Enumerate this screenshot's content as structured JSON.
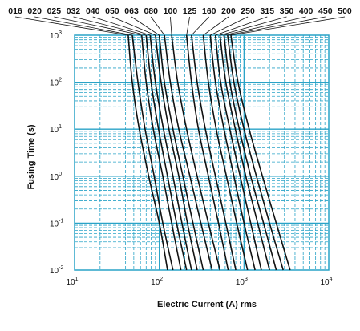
{
  "chart_data": {
    "type": "line",
    "title": "",
    "xlabel": "Electric Current (A) rms",
    "ylabel": "Fusing Time (s)",
    "x_scale": "log",
    "y_scale": "log",
    "xlim": [
      10,
      10000
    ],
    "ylim": [
      0.01,
      1000
    ],
    "x_ticks": [
      {
        "base": "10",
        "exp": "1"
      },
      {
        "base": "10",
        "exp": "2"
      },
      {
        "base": "10",
        "exp": "3"
      },
      {
        "base": "10",
        "exp": "4"
      }
    ],
    "y_ticks": [
      {
        "base": "10",
        "exp": "3"
      },
      {
        "base": "10",
        "exp": "2"
      },
      {
        "base": "10",
        "exp": "1"
      },
      {
        "base": "10",
        "exp": "0"
      },
      {
        "base": "10",
        "exp": "-1"
      },
      {
        "base": "10",
        "exp": "-2"
      }
    ],
    "grid": true,
    "grid_color": "#29a3c7",
    "line_color": "#111111",
    "legend": "rating labels along top edge with leader lines",
    "series": [
      {
        "name": "016",
        "x": [
          43,
          48,
          58,
          75,
          100,
          125
        ],
        "y": [
          1000,
          100,
          10,
          1,
          0.1,
          0.01
        ]
      },
      {
        "name": "020",
        "x": [
          48,
          56,
          68,
          87,
          110,
          145
        ],
        "y": [
          1000,
          100,
          10,
          1,
          0.1,
          0.01
        ]
      },
      {
        "name": "025",
        "x": [
          62,
          70,
          85,
          110,
          140,
          180
        ],
        "y": [
          1000,
          100,
          10,
          1,
          0.1,
          0.01
        ]
      },
      {
        "name": "032",
        "x": [
          70,
          80,
          98,
          125,
          160,
          210
        ],
        "y": [
          1000,
          100,
          10,
          1,
          0.1,
          0.01
        ]
      },
      {
        "name": "040",
        "x": [
          78,
          90,
          112,
          145,
          185,
          240
        ],
        "y": [
          1000,
          100,
          10,
          1,
          0.1,
          0.01
        ]
      },
      {
        "name": "050",
        "x": [
          90,
          105,
          130,
          170,
          215,
          280
        ],
        "y": [
          1000,
          100,
          10,
          1,
          0.1,
          0.01
        ]
      },
      {
        "name": "063",
        "x": [
          100,
          115,
          145,
          190,
          250,
          330
        ],
        "y": [
          1000,
          100,
          10,
          1,
          0.1,
          0.01
        ]
      },
      {
        "name": "080",
        "x": [
          115,
          135,
          170,
          230,
          310,
          420
        ],
        "y": [
          1000,
          100,
          10,
          1,
          0.1,
          0.01
        ]
      },
      {
        "name": "100",
        "x": [
          140,
          165,
          210,
          280,
          380,
          520
        ],
        "y": [
          1000,
          100,
          10,
          1,
          0.1,
          0.01
        ]
      },
      {
        "name": "125",
        "x": [
          210,
          240,
          290,
          380,
          500,
          650
        ],
        "y": [
          1000,
          100,
          10,
          1,
          0.1,
          0.01
        ]
      },
      {
        "name": "160",
        "x": [
          240,
          280,
          350,
          460,
          610,
          800
        ],
        "y": [
          1000,
          100,
          10,
          1,
          0.1,
          0.01
        ]
      },
      {
        "name": "200",
        "x": [
          330,
          380,
          470,
          620,
          820,
          1100
        ],
        "y": [
          1000,
          100,
          10,
          1,
          0.1,
          0.01
        ]
      },
      {
        "name": "250",
        "x": [
          400,
          460,
          580,
          760,
          1000,
          1350
        ],
        "y": [
          1000,
          100,
          10,
          1,
          0.1,
          0.01
        ]
      },
      {
        "name": "315",
        "x": [
          460,
          530,
          680,
          900,
          1200,
          1600
        ],
        "y": [
          1000,
          100,
          10,
          1,
          0.1,
          0.01
        ]
      },
      {
        "name": "350",
        "x": [
          520,
          610,
          790,
          1050,
          1450,
          2000
        ],
        "y": [
          1000,
          100,
          10,
          1,
          0.1,
          0.01
        ]
      },
      {
        "name": "400",
        "x": [
          580,
          680,
          880,
          1200,
          1700,
          2400
        ],
        "y": [
          1000,
          100,
          10,
          1,
          0.1,
          0.01
        ]
      },
      {
        "name": "450",
        "x": [
          640,
          760,
          1000,
          1400,
          2000,
          2900
        ],
        "y": [
          1000,
          100,
          10,
          1,
          0.1,
          0.01
        ]
      },
      {
        "name": "500",
        "x": [
          700,
          850,
          1150,
          1650,
          2400,
          3500
        ],
        "y": [
          1000,
          100,
          10,
          1,
          0.1,
          0.01
        ]
      }
    ]
  }
}
